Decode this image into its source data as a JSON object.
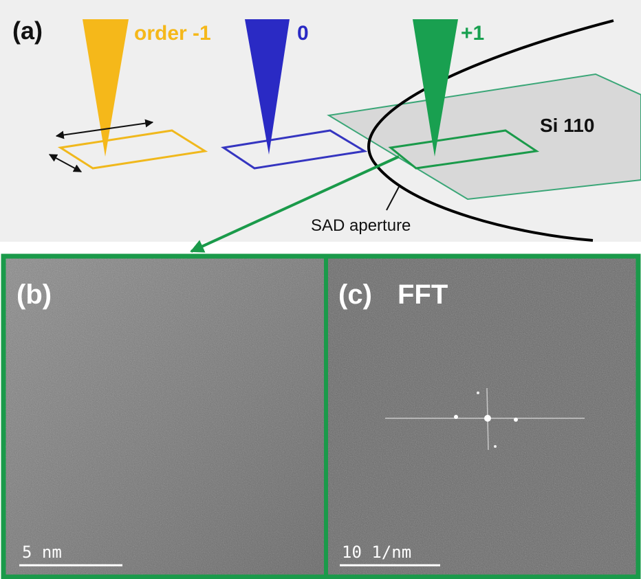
{
  "panel_a": {
    "label": "(a)",
    "beams": [
      {
        "label": "order -1"
      },
      {
        "label": "0"
      },
      {
        "label": "+1"
      }
    ],
    "sample": "Si 110",
    "aperture": "SAD aperture"
  },
  "panel_b": {
    "label": "(b)",
    "scale_bar": "5 nm"
  },
  "panel_c": {
    "label": "(c)",
    "title": "FFT",
    "scale_bar": "10 1/nm"
  }
}
